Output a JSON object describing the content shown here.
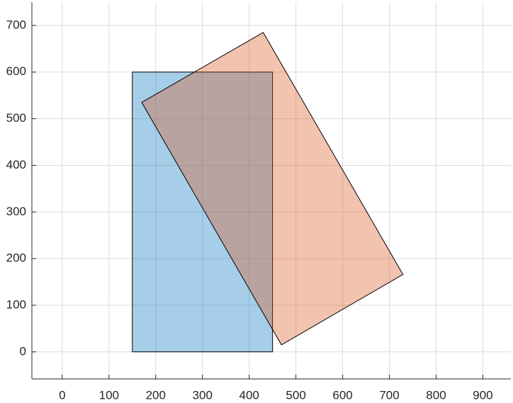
{
  "chart_data": {
    "type": "polygon",
    "series": [
      {
        "color": "#0072bd",
        "x": [
          150,
          450,
          450,
          150
        ],
        "y": [
          0,
          0,
          600,
          600
        ]
      },
      {
        "color": "#d95319",
        "x": [
          170,
          430,
          729,
          469
        ],
        "y": [
          535,
          685,
          166,
          15
        ]
      }
    ],
    "fill_alpha": 0.35,
    "edge_color": "#000000",
    "xlim": [
      -65,
      960
    ],
    "xticks": [
      0,
      100,
      200,
      300,
      400,
      500,
      600,
      700,
      800,
      900
    ],
    "ylim": [
      -58,
      750
    ],
    "yticks": [
      0,
      100,
      200,
      300,
      400,
      500,
      600,
      700
    ],
    "grid": true
  }
}
